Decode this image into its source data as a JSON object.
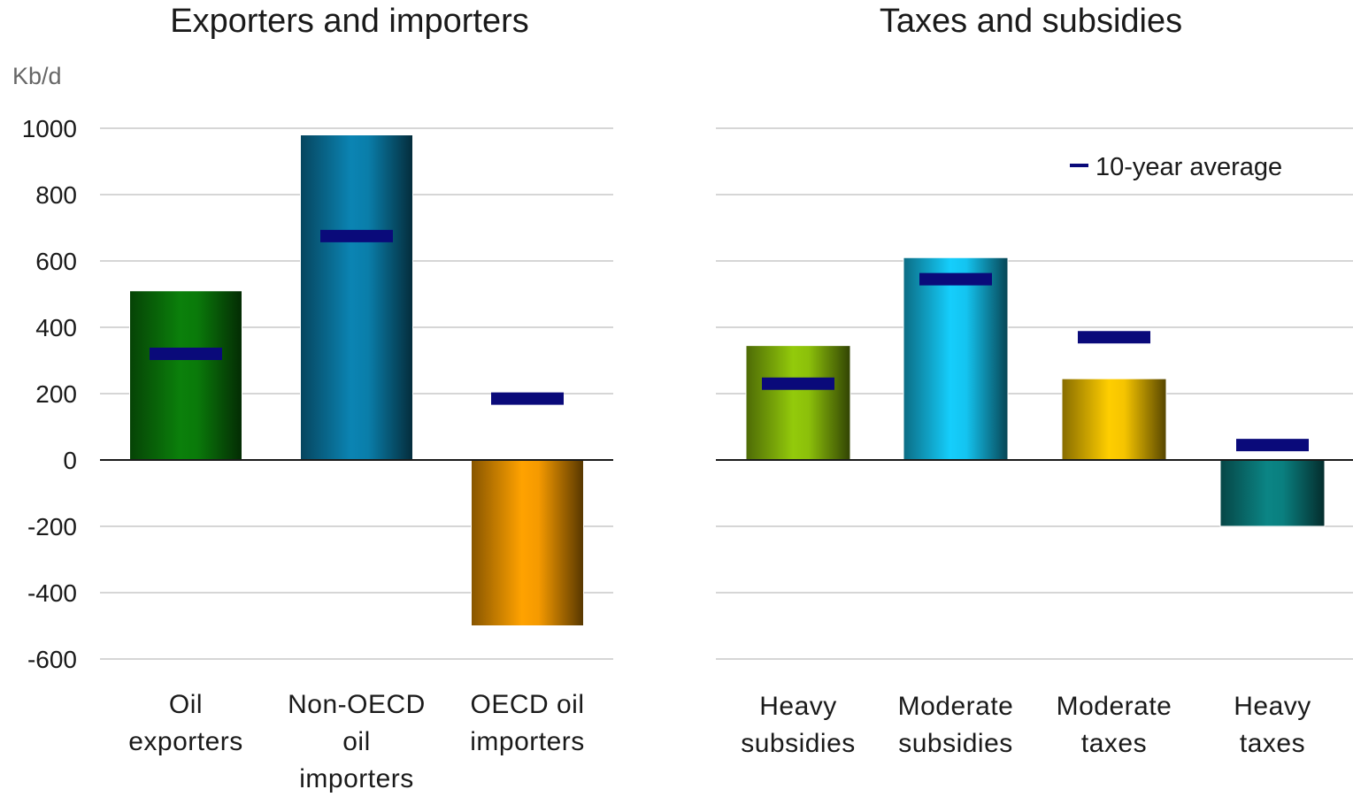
{
  "chart_data": [
    {
      "type": "bar",
      "title": "Exporters and importers",
      "ylabel": "Kb/d",
      "ylim": [
        -600,
        1000
      ],
      "yticks": [
        "1000",
        "800",
        "600",
        "400",
        "200",
        "0",
        "-200",
        "-400",
        "-600"
      ],
      "ytick_values": [
        1000,
        800,
        600,
        400,
        200,
        0,
        -200,
        -400,
        -600
      ],
      "categories": [
        [
          "Oil",
          "exporters"
        ],
        [
          "Non-OECD",
          "oil",
          "importers"
        ],
        [
          "OECD oil",
          "importers"
        ]
      ],
      "values": [
        510,
        980,
        -500
      ],
      "ten_year_average": [
        320,
        675,
        185
      ],
      "colors": [
        "#0a7a0a",
        "#0a7eaa",
        "#f59a00"
      ],
      "grid": true
    },
    {
      "type": "bar",
      "title": "Taxes and subsidies",
      "ylim": [
        -600,
        1000
      ],
      "categories": [
        [
          "Heavy",
          "subsidies"
        ],
        [
          "Moderate",
          "subsidies"
        ],
        [
          "Moderate",
          "taxes"
        ],
        [
          "Heavy",
          "taxes"
        ]
      ],
      "values": [
        345,
        610,
        245,
        -200
      ],
      "ten_year_average": [
        230,
        545,
        370,
        45
      ],
      "colors": [
        "#8cc00a",
        "#14c4f0",
        "#f5c400",
        "#0a7f7f"
      ],
      "legend": {
        "label": "10-year average",
        "color": "#0a0a7a",
        "placement": "top-right"
      },
      "grid": true
    }
  ],
  "marker_color": "#0a0a7a"
}
